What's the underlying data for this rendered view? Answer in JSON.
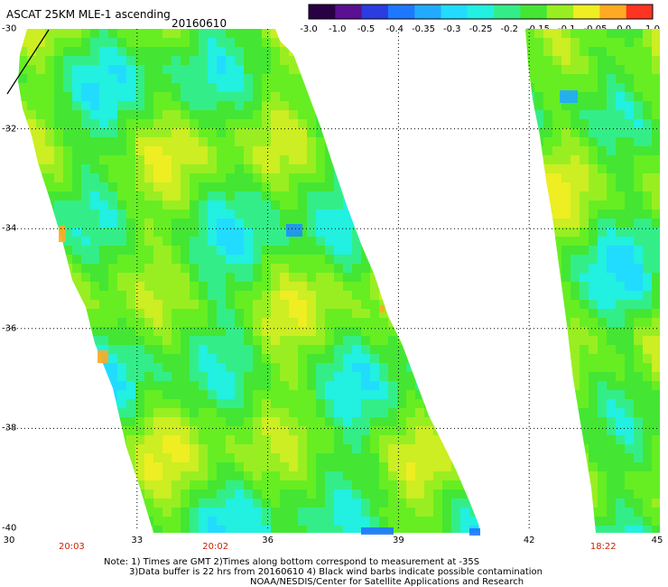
{
  "header": {
    "title": "ASCAT 25KM MLE-1 ascending",
    "date": "20160610"
  },
  "colorbar": {
    "labels": [
      "-3.0",
      "-1.0",
      "-0.5",
      "-0.4",
      "-0.35",
      "-0.3",
      "-0.25",
      "-0.2",
      "-0.15",
      "-0.1",
      "-0.05",
      "0.0",
      "1.0"
    ],
    "colors": [
      "#2a0044",
      "#5a1090",
      "#2b3ce0",
      "#1e78ff",
      "#22aaff",
      "#22dcff",
      "#22f0e0",
      "#33ee88",
      "#44e633",
      "#99ee22",
      "#eeee22",
      "#ffaa22",
      "#ff3322"
    ]
  },
  "map": {
    "y_ticks": [
      "-30",
      "-32",
      "-34",
      "-36",
      "-38",
      "-40"
    ],
    "x_ticks": [
      "30",
      "33",
      "36",
      "39",
      "42",
      "45"
    ],
    "times": [
      {
        "label": "20:03",
        "lon": 31.5
      },
      {
        "label": "20:02",
        "lon": 34.8
      },
      {
        "label": "18:22",
        "lon": 43.7
      }
    ]
  },
  "footer": {
    "note_line1": "Note: 1) Times are GMT 2)Times along bottom correspond to measurement at -35S",
    "note_line2": "3)Data buffer is 22 hrs from 20160610 4) Black wind barbs indicate possible contamination",
    "credit": "NOAA/NESDIS/Center for Satellite Applications and Research"
  }
}
